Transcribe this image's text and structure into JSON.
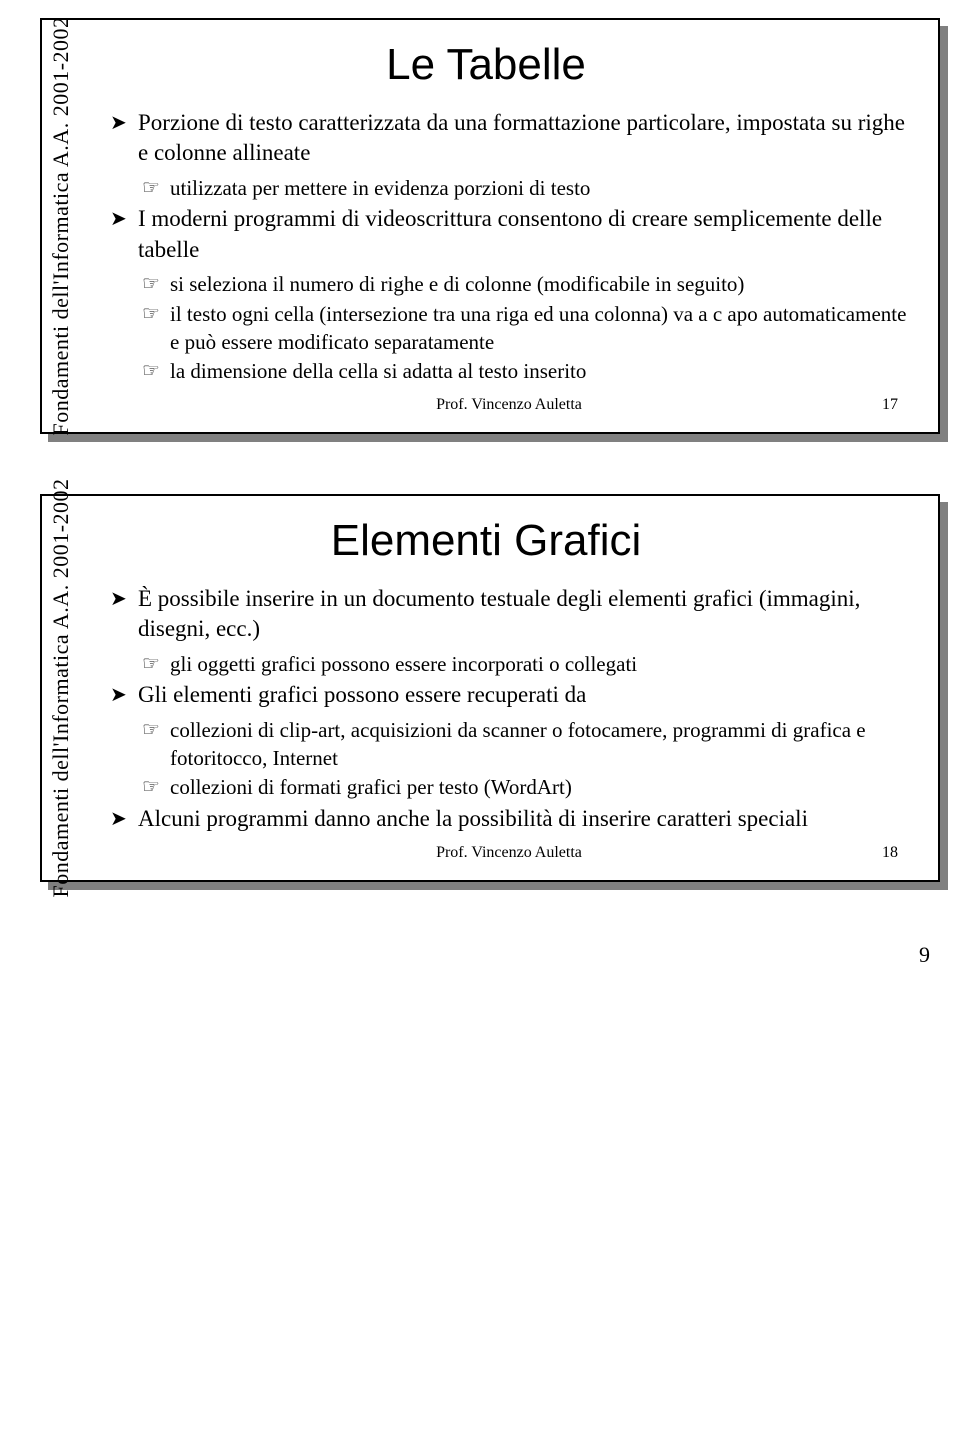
{
  "vertical_label": "Fondamenti dell'Informatica A.A. 2001-2002",
  "slide17": {
    "title": "Le Tabelle",
    "b1": "Porzione di testo caratterizzata da una formattazione particolare, impostata su righe e colonne allineate",
    "b1s1": "utilizzata per mettere in evidenza porzioni di testo",
    "b2": "I moderni programmi di videoscrittura consentono di creare semplicemente delle tabelle",
    "b2s1": "si seleziona il numero di righe e di colonne (modificabile in seguito)",
    "b2s2": "il testo ogni cella (intersezione tra una riga ed una colonna) va a c apo automaticamente e può essere modificato separatamente",
    "b2s3": "la dimensione della cella si adatta al testo inserito",
    "footer_author": "Prof. Vincenzo Auletta",
    "footer_page": "17"
  },
  "slide18": {
    "title": "Elementi Grafici",
    "b1": "È possibile inserire in un documento testuale degli elementi grafici (immagini, disegni, ecc.)",
    "b1s1": "gli oggetti grafici possono essere incorporati o collegati",
    "b2": "Gli elementi grafici possono essere recuperati da",
    "b2s1": "collezioni di clip-art, acquisizioni da scanner o fotocamere, programmi di grafica e fotoritocco, Internet",
    "b2s2": "collezioni di formati grafici per testo (WordArt)",
    "b3": "Alcuni programmi danno anche la possibilità di inserire caratteri speciali",
    "footer_author": "Prof. Vincenzo Auletta",
    "footer_page": "18"
  },
  "page_number": "9"
}
